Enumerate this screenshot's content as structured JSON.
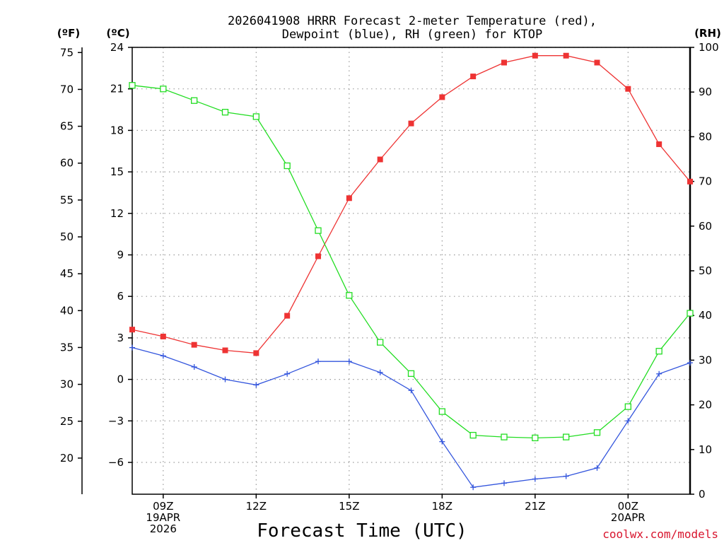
{
  "chart_data": {
    "type": "line",
    "title_lines": [
      "2026041908 HRRR Forecast 2-meter Temperature (red),",
      "Dewpoint (blue), RH (green) for KTOP"
    ],
    "xlabel": "Forecast Time (UTC)",
    "credit": "coolwx.com/models",
    "axes": {
      "fahrenheit": {
        "label": "(ºF)",
        "ticks": [
          "75",
          "70",
          "65",
          "60",
          "55",
          "50",
          "45",
          "40",
          "35",
          "30",
          "25",
          "20"
        ],
        "range": [
          15.1,
          75.7
        ]
      },
      "celsius": {
        "label": "(ºC)",
        "ticks": [
          "24",
          "21",
          "18",
          "15",
          "12",
          "9",
          "6",
          "3",
          "0",
          "−3",
          "−6"
        ],
        "range": [
          -8.3,
          24
        ]
      },
      "rh": {
        "label": "(RH)",
        "ticks": [
          "100",
          "90",
          "80",
          "70",
          "60",
          "50",
          "40",
          "30",
          "20",
          "10",
          "0"
        ],
        "range": [
          0,
          100
        ]
      }
    },
    "x_range_hours": [
      8,
      26
    ],
    "x_ticks": [
      {
        "hour": 9,
        "lines": [
          "09Z",
          "19APR",
          "2026"
        ]
      },
      {
        "hour": 12,
        "lines": [
          "12Z"
        ]
      },
      {
        "hour": 15,
        "lines": [
          "15Z"
        ]
      },
      {
        "hour": 18,
        "lines": [
          "18Z"
        ]
      },
      {
        "hour": 21,
        "lines": [
          "21Z"
        ]
      },
      {
        "hour": 24,
        "lines": [
          "00Z",
          "20APR"
        ]
      }
    ],
    "hours": [
      8,
      9,
      10,
      11,
      12,
      13,
      14,
      15,
      16,
      17,
      18,
      19,
      20,
      21,
      22,
      23,
      24,
      25,
      26
    ],
    "series": [
      {
        "name": "2-meter Temperature",
        "unit": "C",
        "color": "#ee3333",
        "marker": "filled-square",
        "values": [
          3.6,
          3.1,
          2.5,
          2.1,
          1.9,
          4.6,
          8.9,
          13.1,
          15.9,
          18.5,
          20.4,
          21.9,
          22.9,
          23.4,
          23.4,
          22.9,
          21.0,
          17.0,
          14.3
        ]
      },
      {
        "name": "Dewpoint",
        "unit": "C",
        "color": "#3355dd",
        "marker": "plus",
        "values": [
          2.3,
          1.7,
          0.9,
          0.0,
          -0.4,
          0.4,
          1.3,
          1.3,
          0.5,
          -0.8,
          -4.5,
          -7.8,
          -7.5,
          -7.2,
          -7.0,
          -6.4,
          -3.0,
          0.4,
          1.2
        ]
      },
      {
        "name": "Relative Humidity",
        "unit": "%",
        "color": "#22dd22",
        "marker": "open-square",
        "values": [
          91.5,
          90.7,
          88.1,
          85.5,
          84.5,
          73.5,
          59.0,
          44.5,
          34.0,
          27.0,
          18.5,
          13.2,
          12.8,
          12.6,
          12.8,
          13.8,
          19.6,
          32.0,
          40.5
        ]
      }
    ]
  }
}
